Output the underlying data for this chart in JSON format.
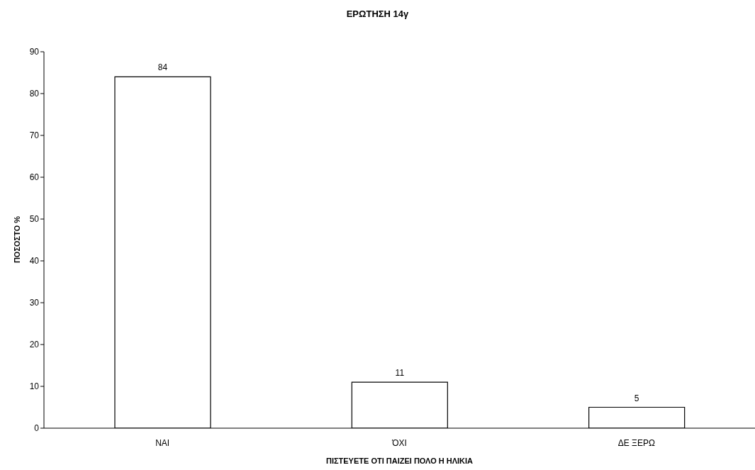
{
  "chart_data": {
    "type": "bar",
    "title": "ΕΡΩΤΗΣΗ 14γ",
    "xlabel": "ΠΙΣΤΕΥΕΤΕ ΟΤΙ ΠΑΙΖΕΙ ΠΟΛΟ Η ΗΛΙΚΙΑ",
    "ylabel": "ΠΟΣΟΣΤΟ %",
    "categories": [
      "ΝΑΙ",
      "ΌΧΙ",
      "ΔΕ ΞΕΡΩ"
    ],
    "values": [
      84,
      11,
      5
    ],
    "color": "#ffffff",
    "ylim": [
      0,
      90
    ],
    "yticks": [
      0,
      10,
      20,
      30,
      40,
      50,
      60,
      70,
      80,
      90
    ],
    "grid": false,
    "data_labels": true
  }
}
